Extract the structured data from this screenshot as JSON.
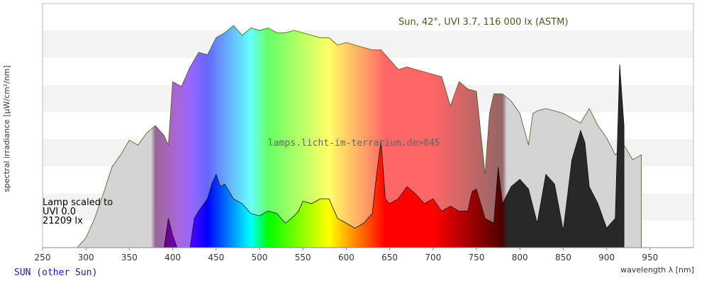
{
  "chart_data": {
    "type": "area",
    "title": "",
    "xlabel": "wavelength λ [nm]",
    "ylabel": "spectral irradiance [µW/cm²/nm]",
    "xlim": [
      250,
      1000
    ],
    "ylim": [
      0,
      1
    ],
    "grid": true,
    "x_ticks": [
      250,
      300,
      350,
      400,
      450,
      500,
      550,
      600,
      650,
      700,
      750,
      800,
      850,
      900,
      950
    ],
    "annotations": {
      "sun": "Sun, 42°, UVI 3.7, 116 000 lx (ASTM)",
      "lamp_line1": "Lamp scaled to",
      "lamp_line2": "UVI 0.0",
      "lamp_line3": "21209 lx",
      "watermark": "lamps.licht-im-terrarium.de>845",
      "footer": "SUN (other Sun)"
    },
    "series": [
      {
        "role": "reference",
        "x": [
          290,
          300,
          310,
          320,
          330,
          340,
          350,
          360,
          370,
          380,
          390,
          395,
          400,
          410,
          420,
          430,
          440,
          450,
          460,
          470,
          480,
          490,
          500,
          510,
          520,
          530,
          540,
          550,
          560,
          570,
          580,
          590,
          600,
          610,
          620,
          630,
          640,
          650,
          660,
          670,
          680,
          690,
          700,
          710,
          720,
          730,
          740,
          750,
          760,
          765,
          770,
          780,
          790,
          800,
          810,
          815,
          820,
          830,
          840,
          850,
          860,
          870,
          880,
          890,
          900,
          910,
          920,
          930,
          940
        ],
        "y": [
          0.0,
          0.04,
          0.12,
          0.22,
          0.33,
          0.38,
          0.44,
          0.42,
          0.47,
          0.5,
          0.46,
          0.42,
          0.68,
          0.66,
          0.74,
          0.8,
          0.79,
          0.86,
          0.88,
          0.91,
          0.87,
          0.9,
          0.89,
          0.9,
          0.88,
          0.88,
          0.89,
          0.88,
          0.87,
          0.86,
          0.86,
          0.83,
          0.84,
          0.83,
          0.82,
          0.81,
          0.81,
          0.77,
          0.73,
          0.74,
          0.73,
          0.72,
          0.71,
          0.7,
          0.58,
          0.68,
          0.65,
          0.64,
          0.3,
          0.55,
          0.63,
          0.63,
          0.6,
          0.55,
          0.42,
          0.55,
          0.56,
          0.57,
          0.56,
          0.55,
          0.53,
          0.51,
          0.57,
          0.5,
          0.45,
          0.38,
          0.42,
          0.36,
          0.38
        ]
      },
      {
        "role": "lamp",
        "x": [
          390,
          395,
          400,
          405,
          410,
          420,
          425,
          430,
          440,
          445,
          450,
          455,
          460,
          470,
          480,
          490,
          500,
          510,
          520,
          530,
          540,
          545,
          550,
          560,
          570,
          580,
          590,
          600,
          610,
          620,
          630,
          635,
          640,
          645,
          650,
          660,
          670,
          680,
          690,
          700,
          710,
          720,
          730,
          740,
          745,
          750,
          755,
          760,
          770,
          775,
          780,
          790,
          800,
          810,
          820,
          830,
          840,
          850,
          860,
          870,
          875,
          880,
          890,
          900,
          910,
          915,
          920
        ],
        "y": [
          0.0,
          0.12,
          0.05,
          0.0,
          0.0,
          0.0,
          0.12,
          0.15,
          0.2,
          0.26,
          0.3,
          0.25,
          0.26,
          0.2,
          0.18,
          0.14,
          0.13,
          0.15,
          0.14,
          0.1,
          0.13,
          0.15,
          0.19,
          0.18,
          0.2,
          0.2,
          0.12,
          0.1,
          0.08,
          0.1,
          0.14,
          0.3,
          0.44,
          0.2,
          0.18,
          0.2,
          0.25,
          0.22,
          0.18,
          0.2,
          0.15,
          0.17,
          0.15,
          0.15,
          0.23,
          0.24,
          0.18,
          0.12,
          0.1,
          0.33,
          0.18,
          0.25,
          0.28,
          0.24,
          0.1,
          0.3,
          0.26,
          0.07,
          0.36,
          0.48,
          0.43,
          0.25,
          0.18,
          0.08,
          0.12,
          0.75,
          0.5
        ]
      }
    ]
  }
}
